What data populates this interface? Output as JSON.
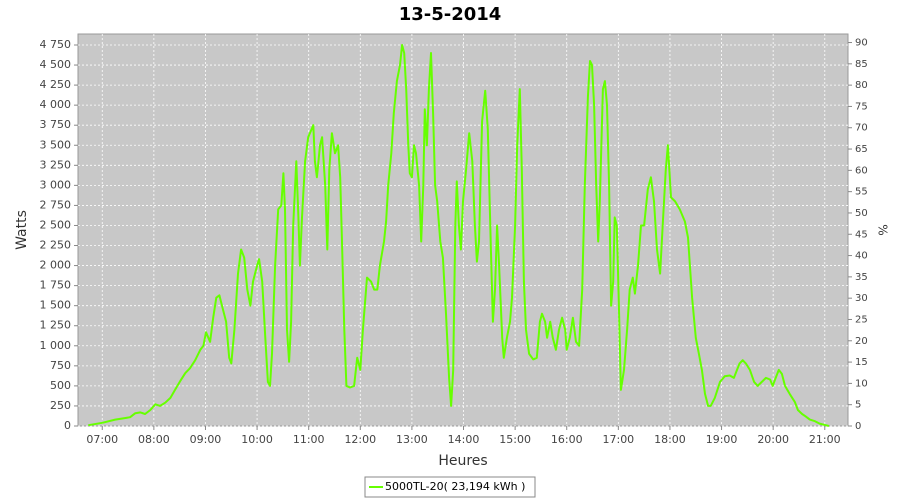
{
  "chart_data": {
    "type": "line",
    "title": "13-5-2014",
    "x_label": "Heures",
    "y_label": "Watts",
    "y2_label": "%",
    "xlim": [
      6.53,
      21.45
    ],
    "ylim": [
      0,
      4887
    ],
    "y2lim": [
      0,
      92
    ],
    "grid": true,
    "legend": "bottom",
    "xticks": [
      {
        "value": 7,
        "label": "07:00"
      },
      {
        "value": 8,
        "label": "08:00"
      },
      {
        "value": 9,
        "label": "09:00"
      },
      {
        "value": 10,
        "label": "10:00"
      },
      {
        "value": 11,
        "label": "11:00"
      },
      {
        "value": 12,
        "label": "12:00"
      },
      {
        "value": 13,
        "label": "13:00"
      },
      {
        "value": 14,
        "label": "14:00"
      },
      {
        "value": 15,
        "label": "15:00"
      },
      {
        "value": 16,
        "label": "16:00"
      },
      {
        "value": 17,
        "label": "17:00"
      },
      {
        "value": 18,
        "label": "18:00"
      },
      {
        "value": 19,
        "label": "19:00"
      },
      {
        "value": 20,
        "label": "20:00"
      },
      {
        "value": 21,
        "label": "21:00"
      }
    ],
    "yticks": [
      0,
      250,
      500,
      750,
      {
        "value": 1000,
        "label": "1 000"
      },
      {
        "value": 1250,
        "label": "1 250"
      },
      {
        "value": 1500,
        "label": "1 500"
      },
      {
        "value": 1750,
        "label": "1 750"
      },
      {
        "value": 2000,
        "label": "2 000"
      },
      {
        "value": 2250,
        "label": "2 250"
      },
      {
        "value": 2500,
        "label": "2 500"
      },
      {
        "value": 2750,
        "label": "2 750"
      },
      {
        "value": 3000,
        "label": "3 000"
      },
      {
        "value": 3250,
        "label": "3 250"
      },
      {
        "value": 3500,
        "label": "3 500"
      },
      {
        "value": 3750,
        "label": "3 750"
      },
      {
        "value": 4000,
        "label": "4 000"
      },
      {
        "value": 4250,
        "label": "4 250"
      },
      {
        "value": 4500,
        "label": "4 500"
      },
      {
        "value": 4750,
        "label": "4 750"
      }
    ],
    "y2ticks": [
      0,
      5,
      10,
      15,
      20,
      25,
      30,
      35,
      40,
      45,
      50,
      55,
      60,
      65,
      70,
      75,
      80,
      85,
      90
    ],
    "x": [
      6.73,
      7.0,
      7.25,
      7.45,
      7.54,
      7.64,
      7.74,
      7.83,
      7.93,
      8.03,
      8.12,
      8.22,
      8.32,
      8.41,
      8.51,
      8.61,
      8.7,
      8.8,
      8.9,
      8.96,
      9.01,
      9.09,
      9.15,
      9.21,
      9.27,
      9.32,
      9.4,
      9.46,
      9.5,
      9.56,
      9.63,
      9.69,
      9.75,
      9.81,
      9.87,
      9.92,
      10.0,
      10.04,
      10.1,
      10.16,
      10.21,
      10.25,
      10.29,
      10.35,
      10.41,
      10.47,
      10.51,
      10.54,
      10.58,
      10.62,
      10.66,
      10.7,
      10.76,
      10.8,
      10.83,
      10.87,
      10.93,
      10.99,
      11.09,
      11.12,
      11.16,
      11.22,
      11.26,
      11.32,
      11.36,
      11.4,
      11.45,
      11.51,
      11.57,
      11.61,
      11.65,
      11.69,
      11.73,
      11.8,
      11.88,
      11.94,
      12.0,
      12.05,
      12.13,
      12.21,
      12.27,
      12.33,
      12.38,
      12.46,
      12.5,
      12.54,
      12.6,
      12.65,
      12.71,
      12.77,
      12.81,
      12.85,
      12.89,
      12.93,
      12.96,
      13.0,
      13.04,
      13.08,
      13.14,
      13.18,
      13.22,
      13.25,
      13.29,
      13.33,
      13.37,
      13.41,
      13.45,
      13.49,
      13.55,
      13.6,
      13.66,
      13.72,
      13.76,
      13.8,
      13.84,
      13.87,
      13.91,
      13.95,
      13.99,
      14.05,
      14.11,
      14.17,
      14.22,
      14.26,
      14.3,
      14.36,
      14.42,
      14.47,
      14.53,
      14.57,
      14.61,
      14.65,
      14.69,
      14.75,
      14.78,
      14.84,
      14.9,
      14.94,
      15.0,
      15.04,
      15.09,
      15.13,
      15.17,
      15.21,
      15.27,
      15.35,
      15.42,
      15.48,
      15.52,
      15.58,
      15.62,
      15.68,
      15.73,
      15.79,
      15.85,
      15.91,
      15.97,
      16.0,
      16.06,
      16.12,
      16.18,
      16.24,
      16.3,
      16.35,
      16.41,
      16.45,
      16.49,
      16.53,
      16.57,
      16.61,
      16.64,
      16.7,
      16.74,
      16.78,
      16.82,
      16.86,
      16.9,
      16.93,
      16.97,
      17.01,
      17.05,
      17.11,
      17.17,
      17.22,
      17.28,
      17.32,
      17.38,
      17.44,
      17.5,
      17.57,
      17.63,
      17.69,
      17.75,
      17.81,
      17.86,
      17.92,
      17.96,
      18.02,
      18.1,
      18.19,
      18.29,
      18.35,
      18.43,
      18.5,
      18.56,
      18.62,
      18.68,
      18.74,
      18.79,
      18.87,
      18.97,
      19.06,
      19.16,
      19.24,
      19.3,
      19.35,
      19.41,
      19.47,
      19.55,
      19.63,
      19.7,
      19.78,
      19.86,
      19.94,
      19.99,
      20.05,
      20.11,
      20.17,
      20.23,
      20.32,
      20.42,
      20.48,
      20.56,
      20.63,
      20.71,
      20.81,
      20.9,
      21.02,
      21.08
    ],
    "series": [
      {
        "name": "5000TL-20( 23,194 kWh )",
        "color": "#66ff00",
        "values": [
          10,
          40,
          80,
          100,
          110,
          160,
          170,
          150,
          200,
          270,
          250,
          290,
          350,
          450,
          560,
          660,
          720,
          820,
          950,
          1000,
          1170,
          1050,
          1350,
          1600,
          1630,
          1500,
          1300,
          850,
          780,
          1200,
          1900,
          2200,
          2100,
          1700,
          1500,
          1800,
          2000,
          2080,
          1800,
          1100,
          550,
          500,
          900,
          2000,
          2700,
          2750,
          3150,
          2700,
          1200,
          800,
          1300,
          2500,
          3300,
          2600,
          2000,
          2600,
          3300,
          3600,
          3750,
          3300,
          3100,
          3500,
          3600,
          3000,
          2200,
          3200,
          3650,
          3400,
          3500,
          3100,
          2200,
          1200,
          500,
          480,
          500,
          850,
          700,
          1200,
          1850,
          1800,
          1700,
          1700,
          2000,
          2300,
          2550,
          3000,
          3400,
          3900,
          4300,
          4500,
          4750,
          4650,
          4200,
          3500,
          3150,
          3100,
          3500,
          3400,
          3000,
          2300,
          3000,
          3950,
          3500,
          4200,
          4650,
          3900,
          3000,
          2800,
          2300,
          2100,
          1400,
          600,
          250,
          700,
          2500,
          3050,
          2500,
          2200,
          2800,
          3200,
          3650,
          3300,
          2500,
          2050,
          2300,
          3800,
          4180,
          3700,
          2200,
          1300,
          1700,
          2500,
          2000,
          1100,
          850,
          1100,
          1300,
          1600,
          2500,
          3500,
          4200,
          3200,
          1800,
          1200,
          900,
          830,
          850,
          1300,
          1400,
          1300,
          1100,
          1300,
          1100,
          950,
          1200,
          1350,
          1200,
          950,
          1100,
          1350,
          1050,
          1000,
          1700,
          3000,
          4100,
          4550,
          4500,
          4000,
          3000,
          2300,
          2800,
          4200,
          4300,
          4000,
          3000,
          1500,
          1800,
          2600,
          2500,
          1500,
          450,
          700,
          1200,
          1700,
          1850,
          1650,
          2000,
          2500,
          2500,
          2950,
          3100,
          2800,
          2200,
          1900,
          2500,
          3200,
          3500,
          2850,
          2800,
          2700,
          2550,
          2350,
          1600,
          1100,
          900,
          700,
          400,
          250,
          250,
          350,
          550,
          620,
          630,
          600,
          700,
          780,
          820,
          780,
          700,
          550,
          500,
          550,
          600,
          580,
          500,
          600,
          700,
          650,
          500,
          400,
          300,
          200,
          150,
          120,
          80,
          60,
          30,
          10,
          0
        ]
      }
    ]
  }
}
